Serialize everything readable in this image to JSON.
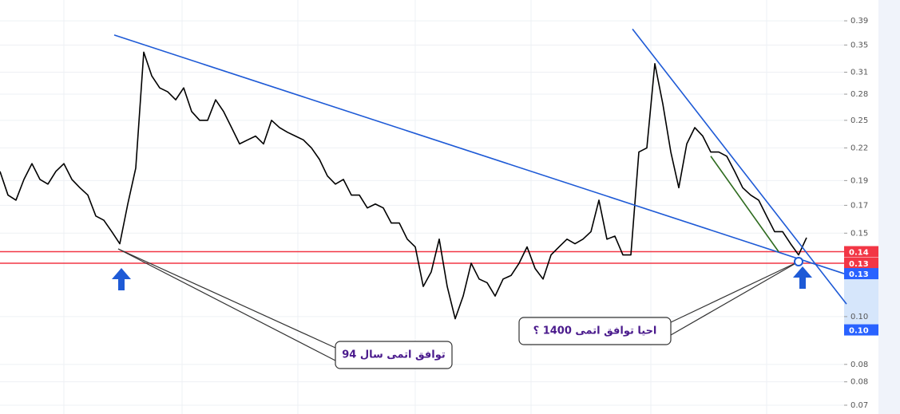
{
  "chart_data": {
    "type": "line",
    "log_scale": true,
    "grid": true,
    "ylim": [
      0.0673,
      0.428
    ],
    "yticks": [
      0.39,
      0.35,
      0.31,
      {
        "value": 0.281,
        "label": "0.28"
      },
      0.25,
      {
        "value": 0.221,
        "label": "0.22"
      },
      {
        "value": 0.191,
        "label": "0.19"
      },
      {
        "value": 0.171,
        "label": "0.17"
      },
      {
        "value": 0.151,
        "label": "0.15"
      },
      {
        "value": 0.104,
        "label": "0.10"
      },
      {
        "value": 0.084,
        "label": "0.08"
      },
      {
        "value": 0.0777,
        "label": "0.08"
      },
      0.07
    ],
    "series": [
      {
        "color": "#000000",
        "values": [
          0.199,
          0.179,
          0.175,
          0.192,
          0.206,
          0.192,
          0.188,
          0.199,
          0.206,
          0.192,
          0.185,
          0.179,
          0.163,
          0.16,
          0.152,
          0.144,
          0.172,
          0.202,
          0.339,
          0.305,
          0.289,
          0.284,
          0.274,
          0.289,
          0.26,
          0.25,
          0.25,
          0.274,
          0.26,
          0.242,
          0.225,
          0.229,
          0.233,
          0.225,
          0.25,
          0.242,
          0.237,
          0.233,
          0.229,
          0.221,
          0.21,
          0.195,
          0.188,
          0.192,
          0.179,
          0.179,
          0.169,
          0.172,
          0.169,
          0.158,
          0.158,
          0.147,
          0.142,
          0.119,
          0.127,
          0.147,
          0.119,
          0.103,
          0.114,
          0.132,
          0.123,
          0.121,
          0.114,
          0.123,
          0.125,
          0.132,
          0.142,
          0.129,
          0.123,
          0.137,
          0.142,
          0.147,
          0.144,
          0.147,
          0.152,
          0.175,
          0.147,
          0.149,
          0.137,
          0.137,
          0.217,
          0.221,
          0.322,
          0.269,
          0.217,
          0.185,
          0.225,
          0.242,
          0.233,
          0.217,
          0.217,
          0.213,
          0.199,
          0.185,
          0.179,
          0.175,
          0.163,
          0.152,
          0.152,
          0.144,
          0.137,
          0.148
        ]
      }
    ],
    "trendlines": [
      {
        "color": "#1e5ad6",
        "x": [
          14.3,
          105.7
        ],
        "values": [
          0.366,
          0.126
        ]
      },
      {
        "color": "#1e5ad6",
        "x": [
          79.2,
          106
        ],
        "values": [
          0.376,
          0.11
        ]
      },
      {
        "color": "#2e6b1f",
        "x": [
          89,
          97.5
        ],
        "values": [
          0.213,
          0.139
        ]
      }
    ],
    "price_labels": [
      {
        "value": 0.139,
        "label": "0.14",
        "color": "#f23645",
        "hline": true
      },
      {
        "value": 0.132,
        "label": "0.13",
        "color": "#f23645",
        "hline": true
      },
      {
        "value": 0.126,
        "label": "0.13",
        "color": "#2962ff",
        "hline": false
      },
      {
        "value": 0.098,
        "label": "0.10",
        "color": "#2962ff",
        "hline": false
      }
    ],
    "annotations": [
      {
        "text": "توافق اتمی سال 94"
      },
      {
        "text": "احیا توافق اتمی 1400 ؟"
      }
    ]
  }
}
